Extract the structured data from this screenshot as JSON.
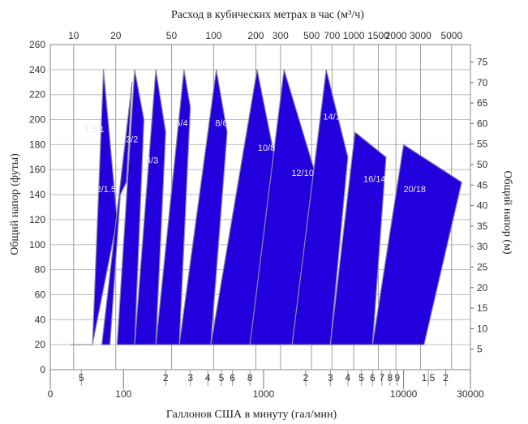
{
  "chart_data": {
    "type": "area",
    "title_top": "Расход в кубических метрах в час (м³/ч)",
    "xlabel": "Галлонов США в минуту (гал/мин)",
    "ylabel": "Общий напор (футы)",
    "ylabel_right": "Общий напор (м)",
    "x_scale": "log",
    "ylim_ft": [
      0,
      260
    ],
    "ylim_m": [
      0,
      79.25
    ],
    "grid": true,
    "region_color": "#2200dd",
    "background_color": "#ffffff",
    "y_ticks_ft": [
      "0",
      "20",
      "40",
      "60",
      "80",
      "100",
      "120",
      "140",
      "160",
      "180",
      "200",
      "220",
      "240",
      "260"
    ],
    "y_ticks_m": [
      "5",
      "10",
      "15",
      "20",
      "25",
      "30",
      "35",
      "40",
      "45",
      "50",
      "55",
      "60",
      "65",
      "70",
      "75"
    ],
    "x_bottom_major": [
      {
        "label": "0",
        "gpm": 30
      },
      {
        "label": "100",
        "gpm": 100
      },
      {
        "label": "1000",
        "gpm": 1000
      },
      {
        "label": "10000",
        "gpm": 10000
      },
      {
        "label": "30000",
        "gpm": 30000
      }
    ],
    "x_bottom_minor": [
      {
        "label": "5",
        "gpm": 50
      },
      {
        "label": "2",
        "gpm": 200
      },
      {
        "label": "3",
        "gpm": 300
      },
      {
        "label": "4",
        "gpm": 400
      },
      {
        "label": "5",
        "gpm": 500
      },
      {
        "label": "6",
        "gpm": 600
      },
      {
        "label": "8",
        "gpm": 800
      },
      {
        "label": "2",
        "gpm": 2000
      },
      {
        "label": "3",
        "gpm": 3000
      },
      {
        "label": "4",
        "gpm": 4000
      },
      {
        "label": "5",
        "gpm": 5000
      },
      {
        "label": "6",
        "gpm": 6000
      },
      {
        "label": "7",
        "gpm": 7000
      },
      {
        "label": "8",
        "gpm": 8000
      },
      {
        "label": "9",
        "gpm": 9000
      },
      {
        "label": "1.5",
        "gpm": 15000
      },
      {
        "label": "2",
        "gpm": 20000
      }
    ],
    "x_top_ticks": [
      {
        "label": "10",
        "m3h": 10
      },
      {
        "label": "20",
        "m3h": 20
      },
      {
        "label": "50",
        "m3h": 50
      },
      {
        "label": "100",
        "m3h": 100
      },
      {
        "label": "200",
        "m3h": 200
      },
      {
        "label": "300",
        "m3h": 300
      },
      {
        "label": "500",
        "m3h": 500
      },
      {
        "label": "700",
        "m3h": 700
      },
      {
        "label": "1000",
        "m3h": 1000
      },
      {
        "label": "1500",
        "m3h": 1500
      },
      {
        "label": "2000",
        "m3h": 2000
      },
      {
        "label": "3000",
        "m3h": 3000
      },
      {
        "label": "5000",
        "m3h": 5000
      }
    ],
    "series": [
      {
        "name": "1.5/1",
        "label_at": [
          62,
          190
        ],
        "points": [
          [
            42,
            20
          ],
          [
            60,
            20
          ],
          [
            72,
            240
          ],
          [
            90,
            120
          ],
          [
            60,
            20
          ]
        ]
      },
      {
        "name": "2/1.5",
        "label_at": [
          75,
          142
        ],
        "points": [
          [
            70,
            20
          ],
          [
            80,
            20
          ],
          [
            95,
            140
          ],
          [
            105,
            150
          ],
          [
            115,
            230
          ]
        ]
      },
      {
        "name": "3/2",
        "label_at": [
          115,
          182
        ],
        "points": [
          [
            90,
            20
          ],
          [
            120,
            20
          ],
          [
            140,
            200
          ],
          [
            120,
            240
          ]
        ]
      },
      {
        "name": "4/3",
        "label_at": [
          160,
          165
        ],
        "points": [
          [
            120,
            20
          ],
          [
            170,
            20
          ],
          [
            200,
            190
          ],
          [
            170,
            240
          ]
        ]
      },
      {
        "name": "6/4",
        "label_at": [
          260,
          195
        ],
        "points": [
          [
            170,
            20
          ],
          [
            250,
            20
          ],
          [
            300,
            210
          ],
          [
            270,
            240
          ]
        ]
      },
      {
        "name": "8/6",
        "label_at": [
          500,
          195
        ],
        "points": [
          [
            250,
            20
          ],
          [
            420,
            20
          ],
          [
            550,
            190
          ],
          [
            460,
            240
          ]
        ]
      },
      {
        "name": "10/8",
        "label_at": [
          1050,
          175
        ],
        "points": [
          [
            420,
            20
          ],
          [
            800,
            20
          ],
          [
            1200,
            170
          ],
          [
            900,
            240
          ]
        ]
      },
      {
        "name": "12/10",
        "label_at": [
          1900,
          155
        ],
        "points": [
          [
            800,
            20
          ],
          [
            1600,
            20
          ],
          [
            2300,
            160
          ],
          [
            1400,
            240
          ]
        ]
      },
      {
        "name": "14/12",
        "label_at": [
          3200,
          200
        ],
        "points": [
          [
            1600,
            20
          ],
          [
            3000,
            20
          ],
          [
            4000,
            170
          ],
          [
            2800,
            240
          ]
        ]
      },
      {
        "name": "16/14",
        "label_at": [
          6200,
          150
        ],
        "points": [
          [
            3000,
            20
          ],
          [
            6000,
            20
          ],
          [
            7500,
            170
          ],
          [
            4500,
            190
          ]
        ]
      },
      {
        "name": "20/18",
        "label_at": [
          12000,
          142
        ],
        "points": [
          [
            6000,
            20
          ],
          [
            14000,
            20
          ],
          [
            26000,
            150
          ],
          [
            10000,
            180
          ]
        ]
      }
    ]
  }
}
